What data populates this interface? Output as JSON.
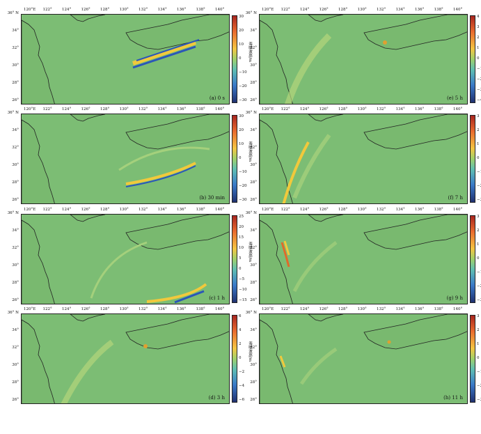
{
  "xticks": [
    "120°E",
    "122°",
    "124°",
    "126°",
    "128°",
    "130°",
    "132°",
    "134°",
    "136°",
    "138°",
    "140°"
  ],
  "yticks": [
    "36°\nN",
    "34°",
    "32°",
    "30°",
    "28°",
    "26°"
  ],
  "colorbar_unit": "海啸波高/m",
  "colors": {
    "sea": "#7cbd74",
    "land_edge": "#222222",
    "wave_pos": "#f1c93c",
    "wave_neg": "#2b56b8"
  },
  "panels": [
    {
      "label": "(a) 0 s",
      "cticks": [
        "30",
        "20",
        "10",
        "0",
        "−10",
        "−20",
        "−30"
      ]
    },
    {
      "label": "(b) 30 min",
      "cticks": [
        "30",
        "20",
        "10",
        "0",
        "−10",
        "−20",
        "−30"
      ]
    },
    {
      "label": "(c) 1 h",
      "cticks": [
        "25",
        "20",
        "15",
        "10",
        "5",
        "0",
        "−5",
        "−10",
        "−15"
      ]
    },
    {
      "label": "(d) 3 h",
      "cticks": [
        "6",
        "4",
        "2",
        "0",
        "−2",
        "−4",
        "−6"
      ]
    },
    {
      "label": "(e) 5 h",
      "cticks": [
        "4",
        "3",
        "2",
        "1",
        "0",
        "−1",
        "−2",
        "−3",
        "−4"
      ]
    },
    {
      "label": "(f) 7 h",
      "cticks": [
        "3",
        "2",
        "1",
        "0",
        "−1",
        "−2",
        "−3"
      ]
    },
    {
      "label": "(g) 9 h",
      "cticks": [
        "3",
        "2",
        "1",
        "0",
        "−1",
        "−2",
        "−3"
      ]
    },
    {
      "label": "(h) 11 h",
      "cticks": [
        "3",
        "2",
        "1",
        "0",
        "−1",
        "−2",
        "−3"
      ]
    }
  ]
}
